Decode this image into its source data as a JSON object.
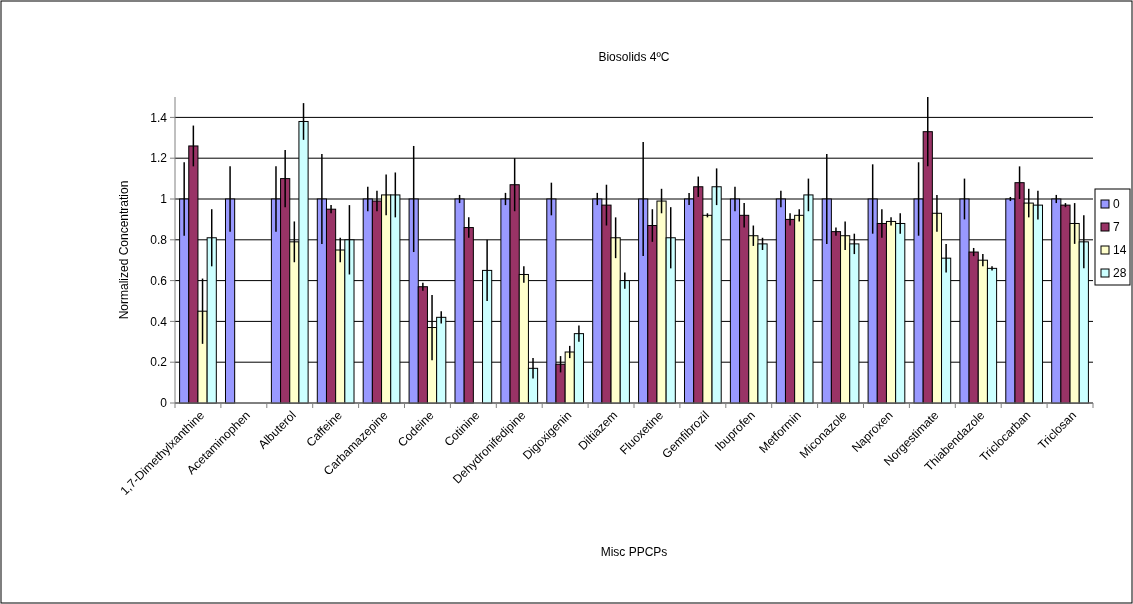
{
  "chart_data": {
    "type": "bar",
    "title": "Biosolids 4ºC",
    "xlabel": "Misc PPCPs",
    "ylabel": "Normalized Concentration",
    "categories": [
      "1,7-Dimethylxanthine",
      "Acetaminophen",
      "Albuterol",
      "Caffeine",
      "Carbamazepine",
      "Codeine",
      "Cotinine",
      "Dehydronifedipine",
      "Digoxigenin",
      "Diltiazem",
      "Fluoxetine",
      "Gemfibrozil",
      "Ibuprofen",
      "Metformin",
      "Miconazole",
      "Naproxen",
      "Norgestimate",
      "Thiabendazole",
      "Triclocarban",
      "Triclosan"
    ],
    "series": [
      {
        "name": "0",
        "color": "#9999ff",
        "values": [
          1,
          1,
          1,
          1,
          1,
          1,
          1,
          1,
          1,
          1,
          1,
          1,
          1,
          1,
          1,
          1,
          1,
          1,
          1,
          1
        ],
        "errors": [
          0.18,
          0.16,
          0.16,
          0.22,
          0.06,
          0.26,
          0.02,
          0.03,
          0.08,
          0.03,
          0.28,
          0.03,
          0.06,
          0.04,
          0.22,
          0.17,
          0.18,
          0.1,
          0.01,
          0.02
        ]
      },
      {
        "name": "7",
        "color": "#993366",
        "values": [
          1.26,
          0,
          1.1,
          0.95,
          0.99,
          0.57,
          0.86,
          1.07,
          0.19,
          0.97,
          0.87,
          1.06,
          0.92,
          0.9,
          0.84,
          0.88,
          1.33,
          0.74,
          1.08,
          0.97
        ],
        "errors": [
          0.1,
          null,
          0.14,
          0.02,
          0.05,
          0.02,
          0.05,
          0.13,
          0.04,
          0.1,
          0.08,
          0.05,
          0.06,
          0.03,
          0.02,
          0.07,
          0.17,
          0.02,
          0.08,
          0.01
        ]
      },
      {
        "name": "14",
        "color": "#ffffcc",
        "values": [
          0.45,
          0,
          0.79,
          0.75,
          1.02,
          0.37,
          null,
          0.63,
          0.25,
          0.81,
          0.99,
          0.92,
          0.82,
          0.92,
          0.82,
          0.89,
          0.93,
          0.7,
          0.98,
          0.88
        ],
        "errors": [
          0.16,
          null,
          0.1,
          0.06,
          0.1,
          0.16,
          null,
          0.04,
          0.03,
          0.1,
          0.06,
          0.01,
          0.05,
          0.03,
          0.07,
          0.02,
          0.09,
          0.03,
          0.07,
          0.1
        ]
      },
      {
        "name": "28",
        "color": "#ccffff",
        "values": [
          0.81,
          0,
          1.38,
          0.8,
          1.02,
          0.42,
          0.65,
          0.17,
          0.34,
          0.6,
          0.81,
          1.06,
          0.78,
          1.02,
          0.78,
          0.88,
          0.71,
          0.66,
          0.97,
          0.79
        ],
        "errors": [
          0.14,
          null,
          0.09,
          0.17,
          0.11,
          0.03,
          0.15,
          0.05,
          0.04,
          0.04,
          0.15,
          0.09,
          0.03,
          0.08,
          0.05,
          0.05,
          0.07,
          0.01,
          0.07,
          0.13
        ]
      }
    ],
    "ylim": [
      0,
      1.5
    ],
    "yticks": [
      0,
      0.2,
      0.4,
      0.6,
      0.8,
      1,
      1.2,
      1.4
    ],
    "grid": "y",
    "legend": "right"
  }
}
